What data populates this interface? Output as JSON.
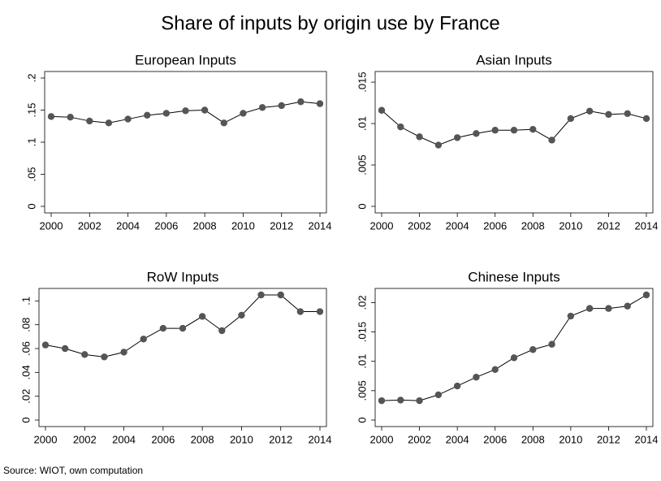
{
  "title": "Share of inputs by origin use by France",
  "note": "Source: WIOT, own computation",
  "chart_data": [
    {
      "type": "line",
      "title": "European Inputs",
      "color": "#555555",
      "x": [
        2000,
        2001,
        2002,
        2003,
        2004,
        2005,
        2006,
        2007,
        2008,
        2009,
        2010,
        2011,
        2012,
        2013,
        2014
      ],
      "values": [
        0.14,
        0.139,
        0.133,
        0.13,
        0.136,
        0.142,
        0.145,
        0.149,
        0.15,
        0.13,
        0.145,
        0.154,
        0.157,
        0.163,
        0.16
      ],
      "xlim": [
        2000,
        2014
      ],
      "xticks": [
        2000,
        2002,
        2004,
        2006,
        2008,
        2010,
        2012,
        2014
      ],
      "ylim": [
        0,
        0.2
      ],
      "yticks": [
        0,
        {
          "value": 0.05,
          "label": ".05"
        },
        {
          "value": 0.1,
          "label": ".1"
        },
        {
          "value": 0.15,
          "label": ".15"
        },
        {
          "value": 0.2,
          "label": ".2"
        }
      ]
    },
    {
      "type": "line",
      "title": "Asian Inputs",
      "color": "#555555",
      "x": [
        2000,
        2001,
        2002,
        2003,
        2004,
        2005,
        2006,
        2007,
        2008,
        2009,
        2010,
        2011,
        2012,
        2013,
        2014
      ],
      "values": [
        0.0116,
        0.0096,
        0.0084,
        0.0074,
        0.0083,
        0.0088,
        0.0092,
        0.0092,
        0.0093,
        0.008,
        0.0106,
        0.0115,
        0.0111,
        0.0112,
        0.0106
      ],
      "xlim": [
        2000,
        2014
      ],
      "xticks": [
        2000,
        2002,
        2004,
        2006,
        2008,
        2010,
        2012,
        2014
      ],
      "ylim": [
        0,
        0.0155
      ],
      "yticks": [
        0,
        {
          "value": 0.005,
          "label": ".005"
        },
        {
          "value": 0.01,
          "label": ".01"
        },
        {
          "value": 0.015,
          "label": ".015"
        }
      ]
    },
    {
      "type": "line",
      "title": "RoW Inputs",
      "color": "#555555",
      "x": [
        2000,
        2001,
        2002,
        2003,
        2004,
        2005,
        2006,
        2007,
        2008,
        2009,
        2010,
        2011,
        2012,
        2013,
        2014
      ],
      "values": [
        0.063,
        0.06,
        0.055,
        0.053,
        0.057,
        0.068,
        0.077,
        0.077,
        0.087,
        0.075,
        0.088,
        0.105,
        0.105,
        0.091,
        0.091
      ],
      "xlim": [
        2000,
        2014
      ],
      "xticks": [
        2000,
        2002,
        2004,
        2006,
        2008,
        2010,
        2012,
        2014
      ],
      "ylim": [
        0,
        0.105
      ],
      "yticks": [
        0,
        {
          "value": 0.02,
          "label": ".02"
        },
        {
          "value": 0.04,
          "label": ".04"
        },
        {
          "value": 0.06,
          "label": ".06"
        },
        {
          "value": 0.08,
          "label": ".08"
        },
        {
          "value": 0.1,
          "label": ".1"
        }
      ]
    },
    {
      "type": "line",
      "title": "Chinese Inputs",
      "color": "#555555",
      "x": [
        2000,
        2001,
        2002,
        2003,
        2004,
        2005,
        2006,
        2007,
        2008,
        2009,
        2010,
        2011,
        2012,
        2013,
        2014
      ],
      "values": [
        0.0033,
        0.0034,
        0.0033,
        0.0043,
        0.0058,
        0.0073,
        0.0086,
        0.0106,
        0.012,
        0.0129,
        0.0177,
        0.019,
        0.019,
        0.0194,
        0.0213
      ],
      "xlim": [
        2000,
        2014
      ],
      "xticks": [
        2000,
        2002,
        2004,
        2006,
        2008,
        2010,
        2012,
        2014
      ],
      "ylim": [
        0,
        0.0213
      ],
      "yticks": [
        0,
        {
          "value": 0.005,
          "label": ".005"
        },
        {
          "value": 0.01,
          "label": ".01"
        },
        {
          "value": 0.015,
          "label": ".015"
        },
        {
          "value": 0.02,
          "label": ".02"
        }
      ]
    }
  ]
}
